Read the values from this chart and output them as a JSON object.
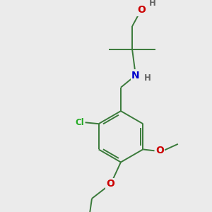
{
  "background_color": "#ebebeb",
  "bond_color": "#3a7a3a",
  "atom_colors": {
    "O": "#cc0000",
    "N": "#0000cc",
    "Cl": "#22aa22",
    "H": "#666666"
  },
  "figsize": [
    3.0,
    3.0
  ],
  "dpi": 100
}
